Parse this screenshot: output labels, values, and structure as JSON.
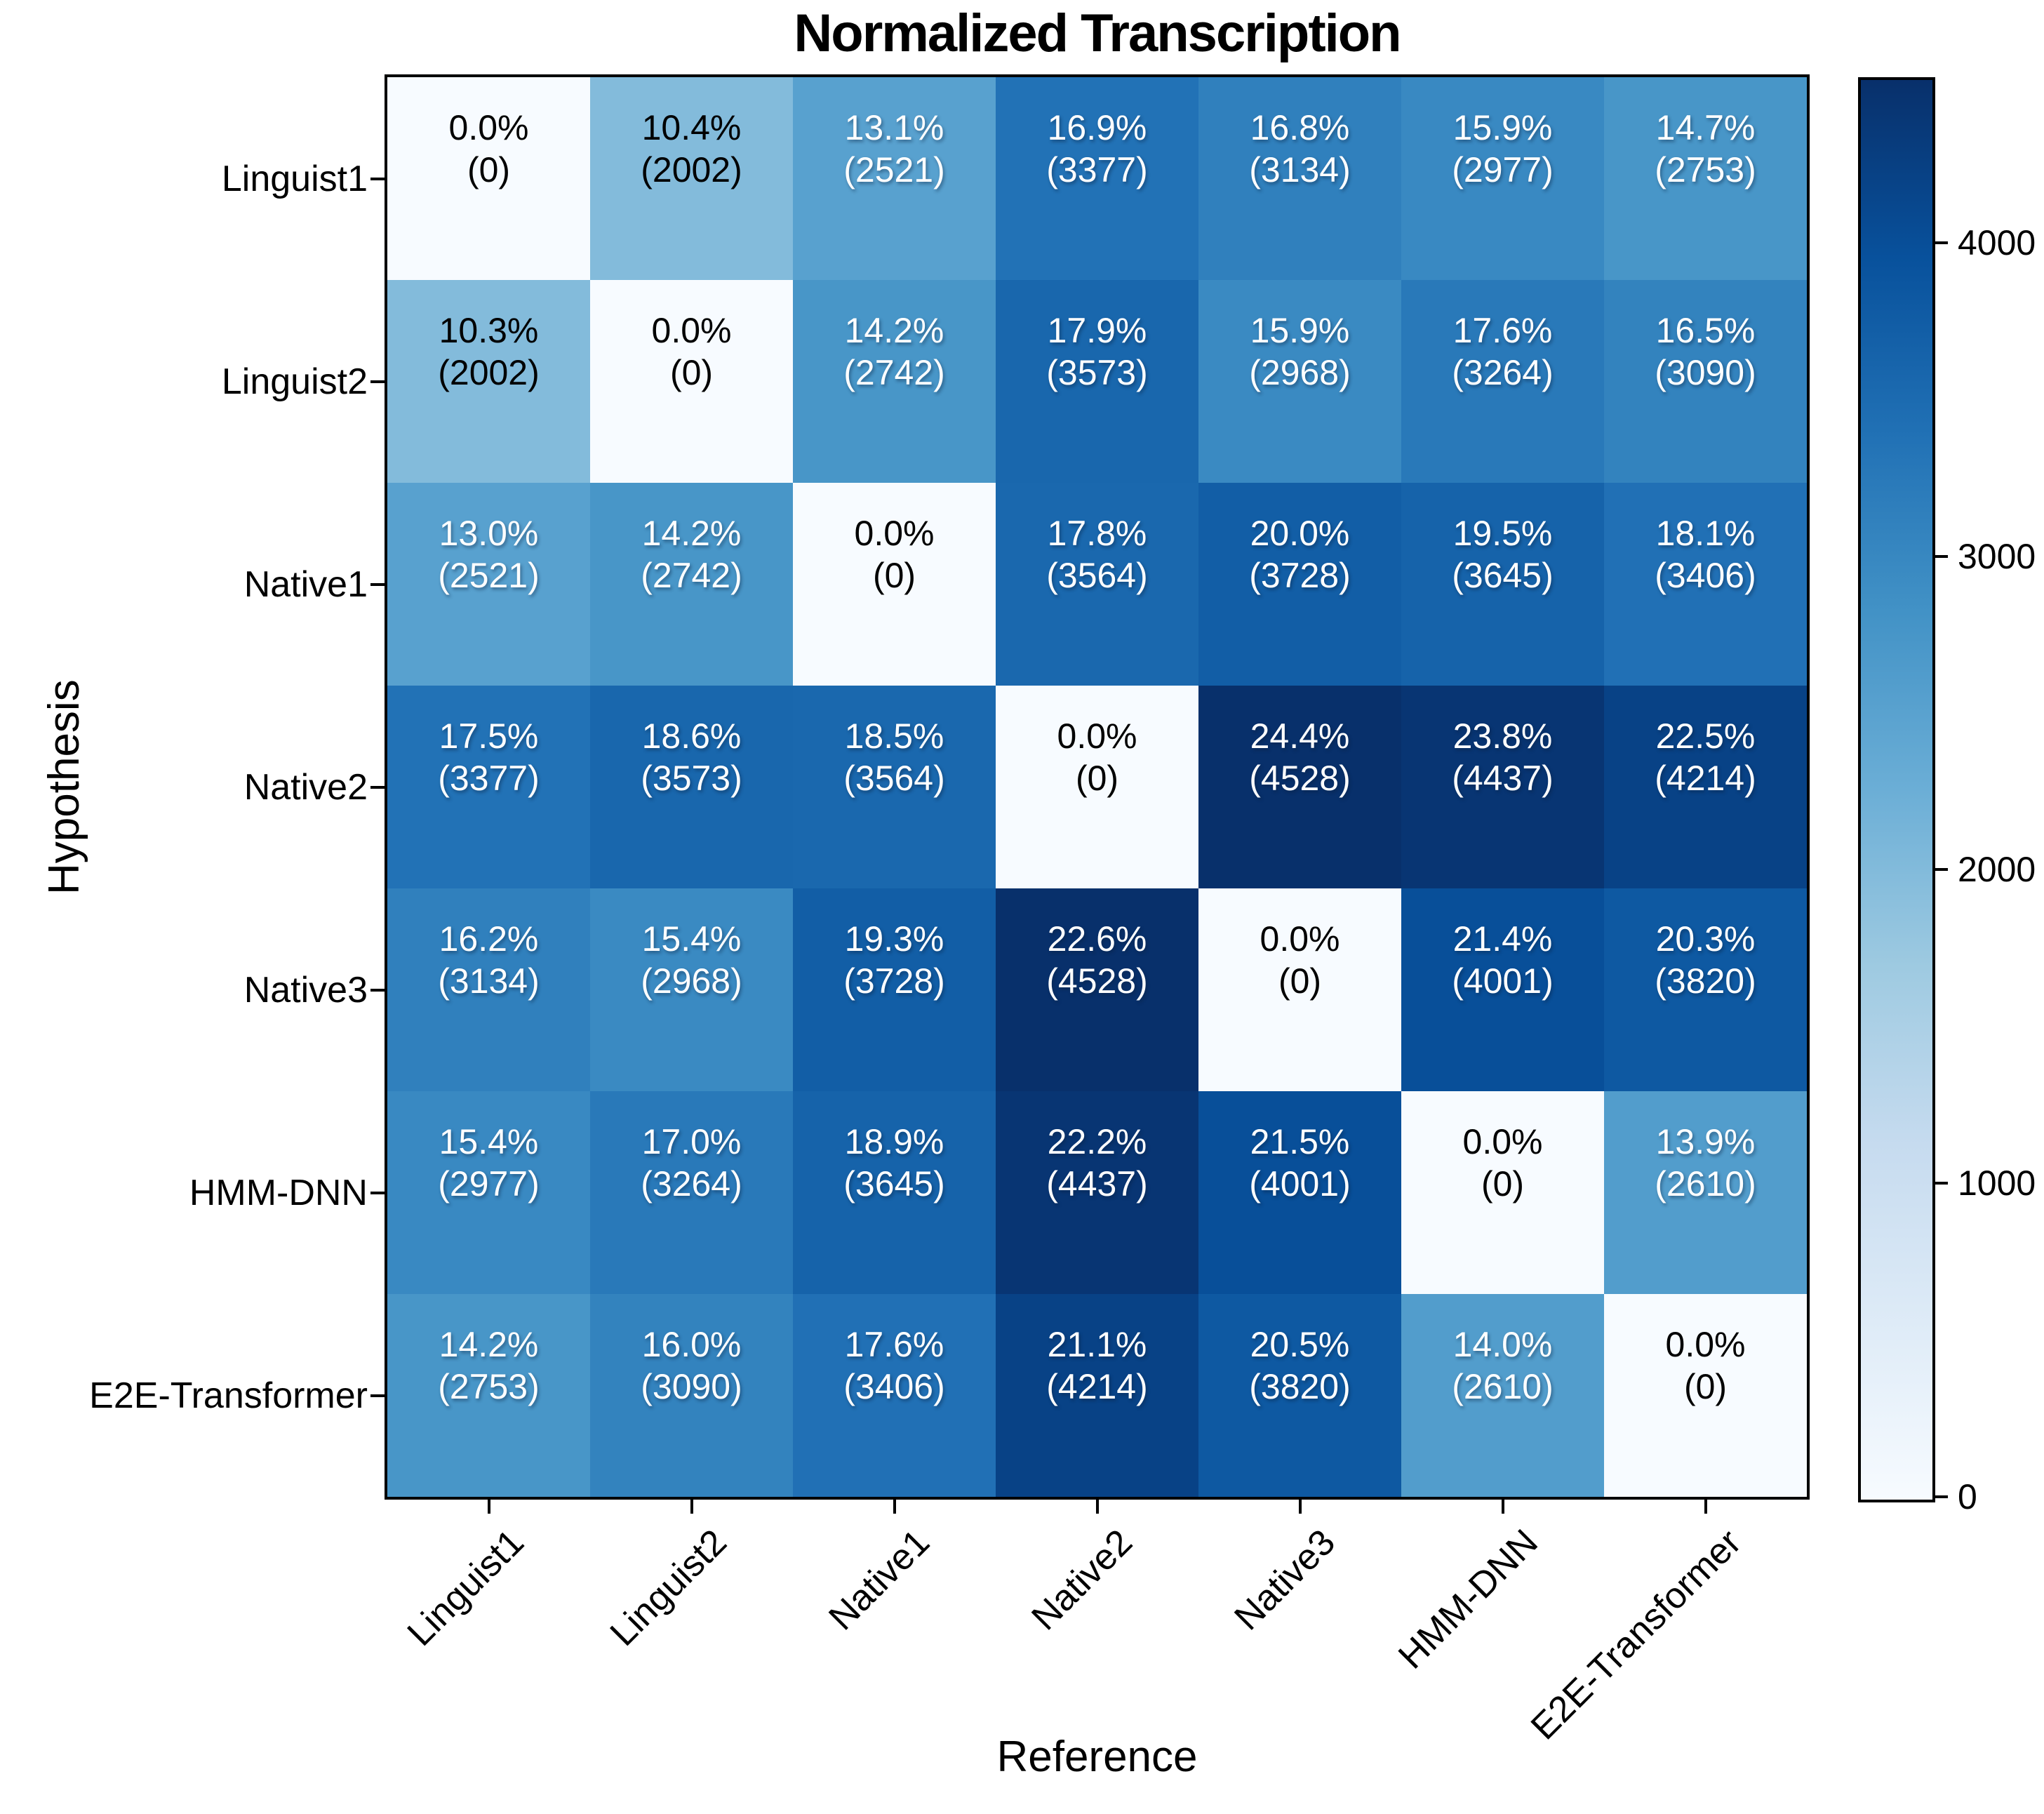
{
  "title": "Normalized Transcription",
  "axes": {
    "xlabel": "Reference",
    "ylabel": "Hypothesis"
  },
  "colors": {
    "background": "#ffffff",
    "axis_line": "#000000",
    "cell_text_dark": "#000000",
    "cell_text_light": "#ffffff",
    "blues_anchors": [
      "#f7fbff",
      "#deebf7",
      "#c6dbef",
      "#9ecae1",
      "#6baed6",
      "#4292c6",
      "#2171b5",
      "#08519c",
      "#08306b"
    ]
  },
  "colorbar": {
    "vmin": 0,
    "vmax": 4528,
    "ticks": [
      0,
      1000,
      2000,
      3000,
      4000
    ],
    "colormap": "Blues",
    "position": "right"
  },
  "chart_data": {
    "type": "heatmap",
    "title": "Normalized Transcription",
    "xlabel": "Reference",
    "ylabel": "Hypothesis",
    "colormap": "Blues",
    "vmin": 0,
    "vmax": 4528,
    "grid": false,
    "x_categories": [
      "Linguist1",
      "Linguist2",
      "Native1",
      "Native2",
      "Native3",
      "HMM-DNN",
      "E2E-Transformer"
    ],
    "y_categories": [
      "Linguist1",
      "Linguist2",
      "Native1",
      "Native2",
      "Native3",
      "HMM-DNN",
      "E2E-Transformer"
    ],
    "cell_label_format": "pct newline (count)",
    "cells": [
      [
        {
          "pct": "0.0%",
          "count": 0
        },
        {
          "pct": "10.4%",
          "count": 2002
        },
        {
          "pct": "13.1%",
          "count": 2521
        },
        {
          "pct": "16.9%",
          "count": 3377
        },
        {
          "pct": "16.8%",
          "count": 3134
        },
        {
          "pct": "15.9%",
          "count": 2977
        },
        {
          "pct": "14.7%",
          "count": 2753
        }
      ],
      [
        {
          "pct": "10.3%",
          "count": 2002
        },
        {
          "pct": "0.0%",
          "count": 0
        },
        {
          "pct": "14.2%",
          "count": 2742
        },
        {
          "pct": "17.9%",
          "count": 3573
        },
        {
          "pct": "15.9%",
          "count": 2968
        },
        {
          "pct": "17.6%",
          "count": 3264
        },
        {
          "pct": "16.5%",
          "count": 3090
        }
      ],
      [
        {
          "pct": "13.0%",
          "count": 2521
        },
        {
          "pct": "14.2%",
          "count": 2742
        },
        {
          "pct": "0.0%",
          "count": 0
        },
        {
          "pct": "17.8%",
          "count": 3564
        },
        {
          "pct": "20.0%",
          "count": 3728
        },
        {
          "pct": "19.5%",
          "count": 3645
        },
        {
          "pct": "18.1%",
          "count": 3406
        }
      ],
      [
        {
          "pct": "17.5%",
          "count": 3377
        },
        {
          "pct": "18.6%",
          "count": 3573
        },
        {
          "pct": "18.5%",
          "count": 3564
        },
        {
          "pct": "0.0%",
          "count": 0
        },
        {
          "pct": "24.4%",
          "count": 4528
        },
        {
          "pct": "23.8%",
          "count": 4437
        },
        {
          "pct": "22.5%",
          "count": 4214
        }
      ],
      [
        {
          "pct": "16.2%",
          "count": 3134
        },
        {
          "pct": "15.4%",
          "count": 2968
        },
        {
          "pct": "19.3%",
          "count": 3728
        },
        {
          "pct": "22.6%",
          "count": 4528
        },
        {
          "pct": "0.0%",
          "count": 0
        },
        {
          "pct": "21.4%",
          "count": 4001
        },
        {
          "pct": "20.3%",
          "count": 3820
        }
      ],
      [
        {
          "pct": "15.4%",
          "count": 2977
        },
        {
          "pct": "17.0%",
          "count": 3264
        },
        {
          "pct": "18.9%",
          "count": 3645
        },
        {
          "pct": "22.2%",
          "count": 4437
        },
        {
          "pct": "21.5%",
          "count": 4001
        },
        {
          "pct": "0.0%",
          "count": 0
        },
        {
          "pct": "13.9%",
          "count": 2610
        }
      ],
      [
        {
          "pct": "14.2%",
          "count": 2753
        },
        {
          "pct": "16.0%",
          "count": 3090
        },
        {
          "pct": "17.6%",
          "count": 3406
        },
        {
          "pct": "21.1%",
          "count": 4214
        },
        {
          "pct": "20.5%",
          "count": 3820
        },
        {
          "pct": "14.0%",
          "count": 2610
        },
        {
          "pct": "0.0%",
          "count": 0
        }
      ]
    ]
  }
}
